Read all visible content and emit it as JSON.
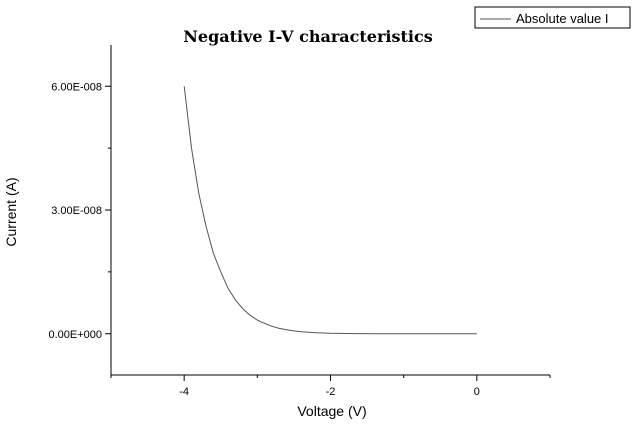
{
  "chart_data": {
    "type": "line",
    "title": "Negative I-V characteristics",
    "xlabel": "Voltage (V)",
    "ylabel": "Current (A)",
    "xlim": [
      -5,
      1
    ],
    "ylim": [
      -1e-08,
      7e-08
    ],
    "xticks": [
      -4,
      -2,
      0
    ],
    "xtick_labels": [
      "-4",
      "-2",
      "0"
    ],
    "yticks": [
      0,
      3e-08,
      6e-08
    ],
    "ytick_labels": [
      "0.00E+000",
      "3.00E-008",
      "6.00E-008"
    ],
    "grid": false,
    "legend": "top-right",
    "series": [
      {
        "name": "Absolute value I",
        "color": "#555555",
        "x": [
          -4.0,
          -3.9,
          -3.8,
          -3.7,
          -3.6,
          -3.5,
          -3.4,
          -3.3,
          -3.2,
          -3.1,
          -3.0,
          -2.9,
          -2.8,
          -2.7,
          -2.6,
          -2.5,
          -2.4,
          -2.3,
          -2.2,
          -2.1,
          -2.0,
          -1.8,
          -1.6,
          -1.4,
          -1.2,
          -1.0,
          -0.8,
          -0.6,
          -0.4,
          -0.2,
          0.0
        ],
        "y": [
          6e-08,
          4.5e-08,
          3.4e-08,
          2.6e-08,
          1.95e-08,
          1.5e-08,
          1.1e-08,
          8.2e-09,
          6.1e-09,
          4.5e-09,
          3.3e-09,
          2.5e-09,
          1.8e-09,
          1.3e-09,
          9.5e-10,
          7e-10,
          5e-10,
          3.5e-10,
          2.5e-10,
          1.8e-10,
          1.2e-10,
          6e-11,
          3e-11,
          1.5e-11,
          7e-12,
          3e-12,
          0,
          0,
          0,
          0,
          0
        ]
      }
    ]
  }
}
